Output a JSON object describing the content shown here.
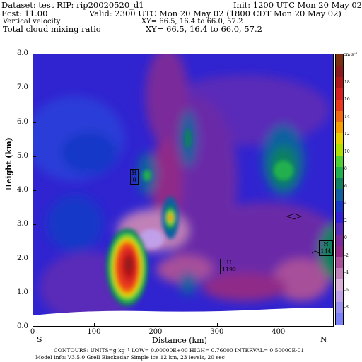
{
  "header": {
    "dataset": "Dataset: test  RIP: rip20020520_d1",
    "init": "Init: 1200 UTC Mon 20 May 02",
    "fcst": "Fcst:    11.00",
    "valid": "Valid: 2300 UTC Mon 20 May 02 (1800 CDT Mon 20 May 02)",
    "field1": "Vertical velocity",
    "xy1": "XY=   66.5, 16.4 to   66.0, 57.2",
    "field2": "Total cloud mixing ratio",
    "xy2": "XY=   66.5, 16.4 to   66.0, 57.2"
  },
  "axes": {
    "ylabel": "Height (km)",
    "xlabel": "Distance (km)",
    "y_ticks": [
      "0.0",
      "1.0",
      "2.0",
      "3.0",
      "4.0",
      "5.0",
      "6.0",
      "7.0",
      "8.0"
    ],
    "x_ticks": [
      "0",
      "100",
      "200",
      "300",
      "400"
    ],
    "left_end": "S",
    "right_end": "N"
  },
  "colorbar": {
    "unit": "cm s⁻¹",
    "labels": [
      "18",
      "16",
      "14",
      "12",
      "10",
      "8",
      "6",
      "4",
      "2",
      "0",
      "-2",
      "-4",
      "-6",
      "-8"
    ],
    "colors": [
      "#7a3010",
      "#8b1a1a",
      "#b01818",
      "#d42020",
      "#e83a1a",
      "#f06a10",
      "#f5a000",
      "#e8d000",
      "#b0e000",
      "#50d030",
      "#20b050",
      "#108060",
      "#1060a0",
      "#1838c8",
      "#3020d8",
      "#5a2ab8",
      "#7a2a9a",
      "#902a88",
      "#a8509a",
      "#c080b8",
      "#d8b0d8",
      "#c0a0e8",
      "#9a90f0",
      "#7a80f8"
    ]
  },
  "annotations": {
    "h_label_1": "H",
    "h_value_1": "0",
    "h_label_2": "H",
    "h_value_2": "1192",
    "h_label_3": "H",
    "h_value_3": "144"
  },
  "footer": {
    "line1": "CONTOURS:  UNITS=g kg⁻¹   LOW= 0.00000E+00   HIGH= 0.76000      INTERVAL=  0.50000E-01",
    "line2": "Model info: V3.5.0   Grell      Blackadar   Simple ice     12 km,   23 levels,    20 sec"
  },
  "chart_data": {
    "type": "heatmap",
    "xlabel": "Distance (km)",
    "ylabel": "Height (km)",
    "xlim": [
      0,
      490
    ],
    "ylim": [
      0,
      8
    ],
    "color_levels": [
      -8,
      -6,
      -4,
      -2,
      0,
      2,
      4,
      6,
      8,
      10,
      12,
      14,
      16,
      18
    ],
    "features": [
      {
        "x": 155,
        "y": 1.8,
        "value": 18
      },
      {
        "x": 230,
        "y": 3.1,
        "value": 10
      },
      {
        "x": 195,
        "y": 4.4,
        "value": 6
      },
      {
        "x": 405,
        "y": 4.6,
        "value": 5
      },
      {
        "x": 255,
        "y": 6.1,
        "value": 4
      },
      {
        "x": 110,
        "y": 5.6,
        "value": 2
      },
      {
        "x": 480,
        "y": 2.2,
        "value": 3
      },
      {
        "x": 215,
        "y": 2.5,
        "value": -8
      },
      {
        "x": 240,
        "y": 5.0,
        "value": -6
      },
      {
        "x": 300,
        "y": 3.5,
        "value": -6
      }
    ]
  }
}
